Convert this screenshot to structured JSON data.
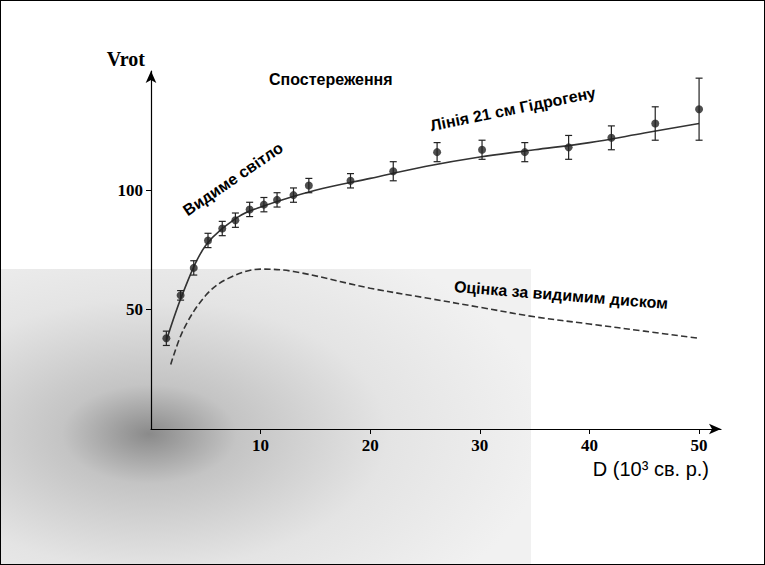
{
  "chart_data": {
    "type": "scatter",
    "annotations": [
      "Спостереження",
      "Видиме світло",
      "Лінія 21 см Гідрогену",
      "Оцінка за видимим диском"
    ],
    "x_label": "D (10³ св. р.)",
    "y_label": "Vrot",
    "xlim": [
      0,
      52
    ],
    "ylim": [
      0,
      150
    ],
    "xticks": [
      10,
      20,
      30,
      40,
      50
    ],
    "yticks": [
      50,
      100
    ],
    "grid": false,
    "series": [
      {
        "type": "scatter",
        "marker": "circle",
        "color": "#222222",
        "x": [
          1.4,
          2.7,
          3.9,
          5.2,
          6.5,
          7.7,
          9.0,
          10.3,
          11.5,
          13.0,
          14.4,
          18.2,
          22.1,
          26.1,
          30.2,
          34.1,
          38.1,
          42.0,
          46.0,
          50.0
        ],
        "values": [
          38,
          56,
          67.5,
          79,
          84,
          87.5,
          92,
          94,
          96,
          98,
          102,
          104,
          108,
          116,
          117,
          116,
          118,
          122,
          128,
          134
        ],
        "errors": [
          3,
          2,
          3,
          3,
          3,
          3,
          3,
          3,
          3,
          3,
          3,
          3,
          4,
          4,
          4,
          4,
          5,
          5,
          7,
          13
        ]
      },
      {
        "type": "line",
        "line_style": "solid",
        "color": "#333333",
        "x": [
          1.4,
          3,
          5,
          8,
          10,
          15,
          20,
          25,
          30,
          35,
          40,
          45,
          50
        ],
        "values": [
          37,
          58,
          77,
          89,
          93,
          100,
          105,
          110,
          114,
          117,
          120,
          124,
          128
        ]
      },
      {
        "type": "line",
        "line_style": "dashed",
        "color": "#333333",
        "x": [
          1.8,
          3,
          5,
          7,
          10,
          13,
          20,
          25,
          30,
          35,
          40,
          45,
          50
        ],
        "values": [
          27,
          42,
          56,
          63,
          67,
          66,
          59,
          55,
          51,
          47,
          44,
          41,
          38
        ]
      }
    ]
  }
}
